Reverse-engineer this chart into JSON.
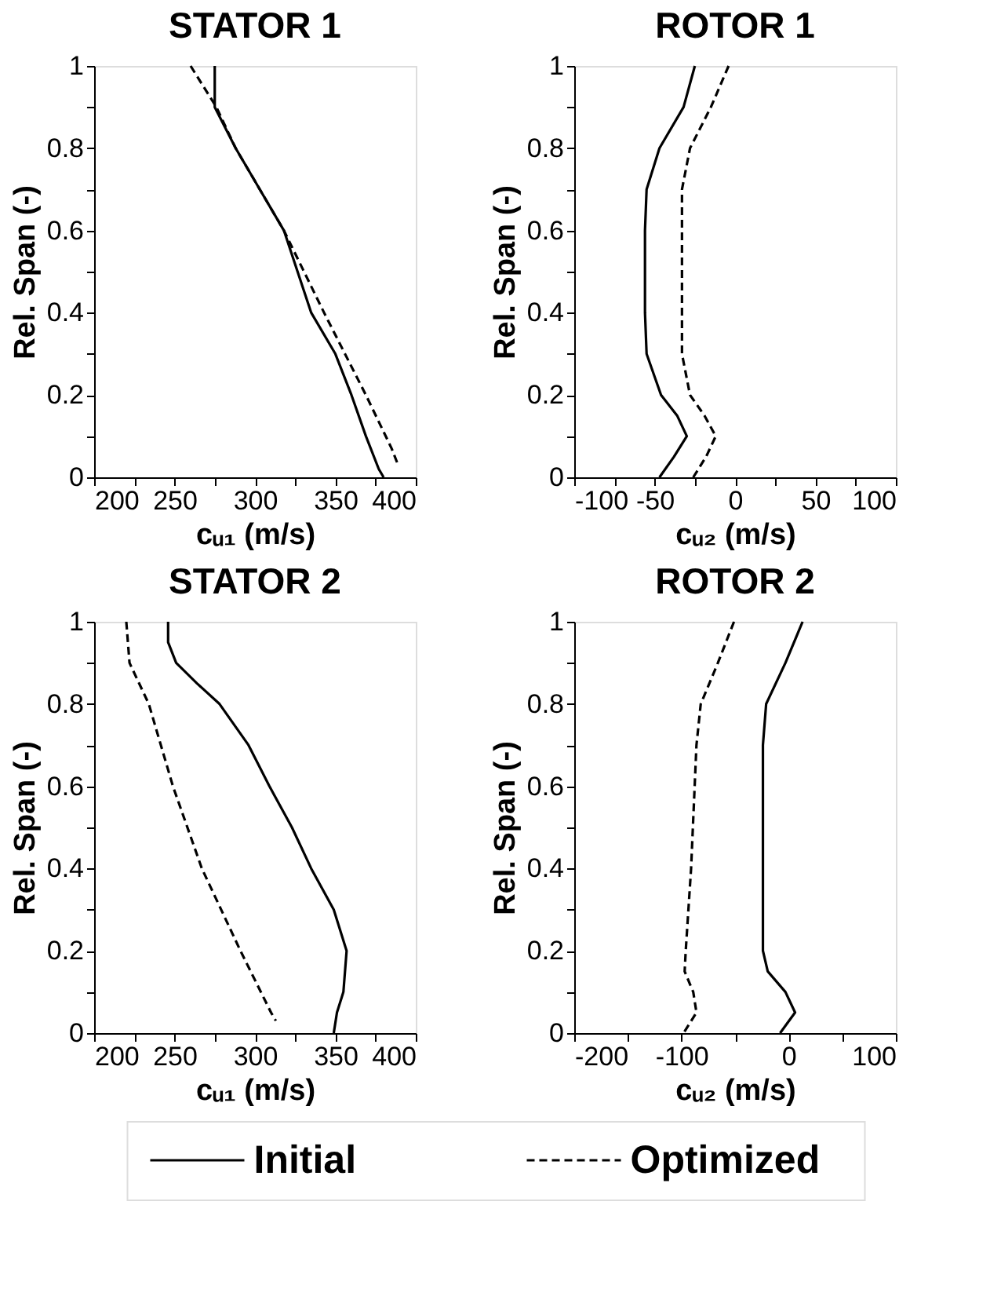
{
  "chart_data": [
    {
      "type": "line",
      "title": "STATOR 1",
      "legend": "bottom",
      "xlabel": "cᵤ₁ (m/s)",
      "ylabel": "Rel. Span (-)",
      "xlim": [
        200,
        400
      ],
      "xticks": [
        200,
        {
          "value": 225,
          "label": null
        },
        250,
        {
          "value": 275,
          "label": null
        },
        300,
        {
          "value": 325,
          "label": null
        },
        350,
        {
          "value": 375,
          "label": null
        },
        400
      ],
      "ylim": [
        0,
        1
      ],
      "yticks": [
        0,
        {
          "value": 0.1,
          "label": null
        },
        0.2,
        {
          "value": 0.3,
          "label": null
        },
        0.4,
        {
          "value": 0.5,
          "label": null
        },
        0.6,
        {
          "value": 0.7,
          "label": null
        },
        0.8,
        {
          "value": 0.9,
          "label": null
        },
        1
      ],
      "series": [
        {
          "name": "Initial",
          "color": "#000000",
          "line_style": "solid",
          "x": [
            275,
            275,
            288,
            303,
            318,
            335,
            350,
            360,
            369,
            377,
            380
          ],
          "values": [
            1,
            0.9,
            0.8,
            0.7,
            0.6,
            0.4,
            0.3,
            0.2,
            0.1,
            0.02,
            0
          ]
        },
        {
          "name": "Optimized",
          "color": "#000000",
          "line_style": "dashed",
          "x": [
            260,
            276,
            288,
            303,
            318,
            343,
            369,
            385,
            389
          ],
          "values": [
            1,
            0.9,
            0.8,
            0.7,
            0.6,
            0.4,
            0.2,
            0.07,
            0.03
          ]
        }
      ]
    },
    {
      "type": "line",
      "title": "ROTOR 1",
      "legend": "bottom",
      "xlabel": "cᵤ₂ (m/s)",
      "ylabel": "Rel. Span (-)",
      "xlim": [
        -100,
        100
      ],
      "xticks": [
        -100,
        {
          "value": -75,
          "label": null
        },
        -50,
        {
          "value": -25,
          "label": null
        },
        0,
        {
          "value": 25,
          "label": null
        },
        50,
        {
          "value": 75,
          "label": null
        },
        100
      ],
      "ylim": [
        0,
        1
      ],
      "yticks": [
        0,
        {
          "value": 0.1,
          "label": null
        },
        0.2,
        {
          "value": 0.3,
          "label": null
        },
        0.4,
        {
          "value": 0.5,
          "label": null
        },
        0.6,
        {
          "value": 0.7,
          "label": null
        },
        0.8,
        {
          "value": 0.9,
          "label": null
        },
        1
      ],
      "series": [
        {
          "name": "Initial",
          "color": "#000000",
          "line_style": "solid",
          "x": [
            -25,
            -32,
            -47,
            -55,
            -56,
            -56,
            -55,
            -46,
            -36,
            -30,
            -38,
            -47
          ],
          "values": [
            1,
            0.9,
            0.8,
            0.7,
            0.6,
            0.4,
            0.3,
            0.2,
            0.15,
            0.1,
            0.05,
            0
          ]
        },
        {
          "name": "Optimized",
          "color": "#000000",
          "line_style": "dashed",
          "x": [
            -4,
            -15,
            -28,
            -33,
            -33,
            -33,
            -28,
            -19,
            -12,
            -18,
            -26
          ],
          "values": [
            1,
            0.9,
            0.8,
            0.7,
            0.6,
            0.3,
            0.2,
            0.15,
            0.1,
            0.05,
            0
          ]
        }
      ]
    },
    {
      "type": "line",
      "title": "STATOR 2",
      "legend": "bottom",
      "xlabel": "cᵤ₁ (m/s)",
      "ylabel": "Rel. Span (-)",
      "xlim": [
        200,
        400
      ],
      "xticks": [
        200,
        {
          "value": 225,
          "label": null
        },
        250,
        {
          "value": 275,
          "label": null
        },
        300,
        {
          "value": 325,
          "label": null
        },
        350,
        {
          "value": 375,
          "label": null
        },
        400
      ],
      "ylim": [
        0,
        1
      ],
      "yticks": [
        0,
        {
          "value": 0.1,
          "label": null
        },
        0.2,
        {
          "value": 0.3,
          "label": null
        },
        0.4,
        {
          "value": 0.5,
          "label": null
        },
        0.6,
        {
          "value": 0.7,
          "label": null
        },
        0.8,
        {
          "value": 0.9,
          "label": null
        },
        1
      ],
      "series": [
        {
          "name": "Initial",
          "color": "#000000",
          "line_style": "solid",
          "x": [
            246,
            246,
            251,
            264,
            278,
            296,
            309,
            323,
            335,
            349,
            357,
            355,
            351,
            349
          ],
          "values": [
            1,
            0.95,
            0.9,
            0.85,
            0.8,
            0.7,
            0.6,
            0.5,
            0.4,
            0.3,
            0.2,
            0.1,
            0.05,
            0
          ]
        },
        {
          "name": "Optimized",
          "color": "#000000",
          "line_style": "dashed",
          "x": [
            220,
            222,
            234,
            249,
            267,
            291,
            310,
            313
          ],
          "values": [
            1,
            0.9,
            0.8,
            0.6,
            0.4,
            0.2,
            0.05,
            0.03
          ]
        }
      ]
    },
    {
      "type": "line",
      "title": "ROTOR 2",
      "xlabel": "cᵤ₂ (m/s)",
      "ylabel": "Rel. Span (-)",
      "xlim": [
        -200,
        100
      ],
      "xticks": [
        -200,
        {
          "value": -150,
          "label": null
        },
        -100,
        {
          "value": -50,
          "label": null
        },
        0,
        {
          "value": 50,
          "label": null
        },
        100
      ],
      "ylim": [
        0,
        1
      ],
      "yticks": [
        0,
        {
          "value": 0.1,
          "label": null
        },
        0.2,
        {
          "value": 0.3,
          "label": null
        },
        0.4,
        {
          "value": 0.5,
          "label": null
        },
        0.6,
        {
          "value": 0.7,
          "label": null
        },
        0.8,
        {
          "value": 0.9,
          "label": null
        },
        1
      ],
      "legend": "bottom",
      "series": [
        {
          "name": "Initial",
          "color": "#000000",
          "line_style": "solid",
          "x": [
            13,
            -3,
            -21,
            -24,
            -24,
            -19.5,
            -3,
            6,
            -8
          ],
          "values": [
            1,
            0.9,
            0.8,
            0.7,
            0.2,
            0.15,
            0.1,
            0.05,
            0
          ]
        },
        {
          "name": "Optimized",
          "color": "#000000",
          "line_style": "dashed",
          "x": [
            -51,
            -66,
            -82,
            -86,
            -91,
            -96,
            -97,
            -89,
            -86,
            -98
          ],
          "values": [
            1,
            0.9,
            0.8,
            0.7,
            0.4,
            0.2,
            0.15,
            0.1,
            0.05,
            0
          ]
        }
      ]
    }
  ]
}
